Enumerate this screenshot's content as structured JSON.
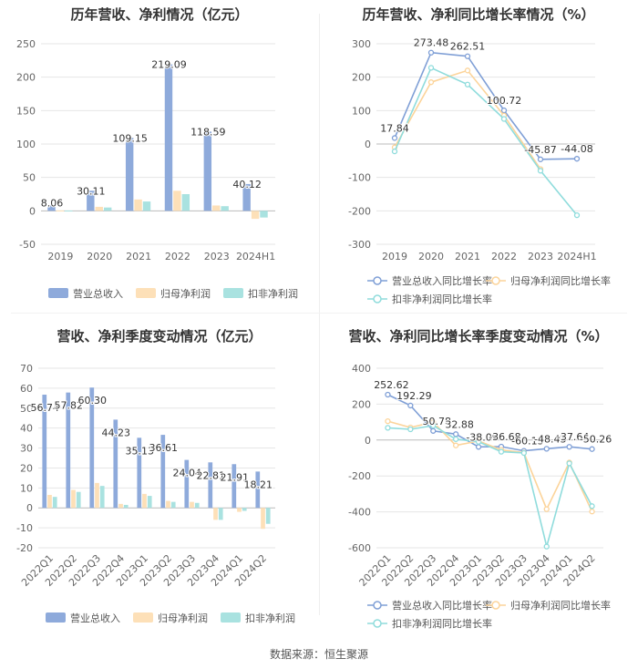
{
  "footer": "数据来源：恒生聚源",
  "chart_data": [
    {
      "id": "annual_values",
      "type": "bar",
      "title": "历年营收、净利情况（亿元）",
      "categories": [
        "2019",
        "2020",
        "2021",
        "2022",
        "2023",
        "2024H1"
      ],
      "ylim": [
        -50,
        250
      ],
      "yticks": [
        -50,
        0,
        50,
        100,
        150,
        200,
        250
      ],
      "series": [
        {
          "name": "营业总收入",
          "color": "#8eaadb",
          "values": [
            8.06,
            30.11,
            109.15,
            219.09,
            118.59,
            40.12
          ],
          "labels": [
            "8.06",
            "30.11",
            "109.15",
            "219.09",
            "118.59",
            "40.12"
          ]
        },
        {
          "name": "归母净利润",
          "color": "#fde0b8",
          "values": [
            0.5,
            6,
            17,
            30,
            8,
            -12
          ]
        },
        {
          "name": "扣非净利润",
          "color": "#a9e2e0",
          "values": [
            0.4,
            5,
            14,
            25,
            7,
            -10
          ]
        }
      ],
      "legend_position": "bottom"
    },
    {
      "id": "annual_growth",
      "type": "line",
      "title": "历年营收、净利同比增长率情况（%）",
      "categories": [
        "2019",
        "2020",
        "2021",
        "2022",
        "2023",
        "2024H1"
      ],
      "ylim": [
        -300,
        300
      ],
      "yticks": [
        -300,
        -200,
        -100,
        0,
        100,
        200,
        300
      ],
      "series": [
        {
          "name": "营业总收入同比增长率",
          "color": "#7f9fd6",
          "values": [
            17.84,
            273.48,
            262.51,
            100.72,
            -45.87,
            -44.08
          ],
          "labels": [
            "17.84",
            "273.48",
            "262.51",
            "100.72",
            "-45.87",
            "-44.08"
          ]
        },
        {
          "name": "归母净利润同比增长率",
          "color": "#fcd49a",
          "values": [
            -10,
            185,
            220,
            85,
            -75,
            null
          ]
        },
        {
          "name": "扣非净利润同比增长率",
          "color": "#8fdcdc",
          "values": [
            -22,
            228,
            178,
            75,
            -80,
            -213
          ]
        }
      ],
      "legend_position": "bottom"
    },
    {
      "id": "quarterly_values",
      "type": "bar",
      "title": "营收、净利季度变动情况（亿元）",
      "categories": [
        "2022Q1",
        "2022Q2",
        "2022Q3",
        "2022Q4",
        "2023Q1",
        "2023Q2",
        "2023Q3",
        "2023Q4",
        "2024Q1",
        "2024Q2"
      ],
      "ylim": [
        -20,
        70
      ],
      "yticks": [
        -20,
        -10,
        0,
        10,
        20,
        30,
        40,
        50,
        60,
        70
      ],
      "series": [
        {
          "name": "营业总收入",
          "color": "#8eaadb",
          "values": [
            56.74,
            57.82,
            60.3,
            44.23,
            35.13,
            36.61,
            24.04,
            22.81,
            21.91,
            18.21
          ],
          "labels": [
            "56.74",
            "57.82",
            "60.30",
            "44.23",
            "35.13",
            "36.61",
            "24.04",
            "22.81",
            "21.91",
            "18.21"
          ]
        },
        {
          "name": "归母净利润",
          "color": "#fde0b8",
          "values": [
            6.5,
            9,
            12.5,
            2,
            7,
            3.5,
            3,
            -6,
            -2,
            -10.5
          ]
        },
        {
          "name": "扣非净利润",
          "color": "#a9e2e0",
          "values": [
            5.5,
            8,
            11,
            1.5,
            6,
            3,
            2.5,
            -6,
            -1.5,
            -8
          ]
        }
      ],
      "legend_position": "bottom"
    },
    {
      "id": "quarterly_growth",
      "type": "line",
      "title": "营收、净利同比增长率季度变动情况（%）",
      "categories": [
        "2022Q1",
        "2022Q2",
        "2022Q3",
        "2022Q4",
        "2023Q1",
        "2023Q2",
        "2023Q3",
        "2023Q4",
        "2024Q1",
        "2024Q2"
      ],
      "ylim": [
        -600,
        400
      ],
      "yticks": [
        -600,
        -400,
        -200,
        0,
        200,
        400
      ],
      "series": [
        {
          "name": "营业总收入同比增长率",
          "color": "#7f9fd6",
          "values": [
            252.62,
            192.29,
            50.78,
            32.88,
            -38.09,
            -36.68,
            -60.13,
            -48.43,
            -37.64,
            -50.26
          ],
          "labels": [
            "252.62",
            "192.29",
            "50.78",
            "32.88",
            "-38.09",
            "-36.68",
            "-60.13",
            "-48.43",
            "-37.64",
            "-50.26"
          ]
        },
        {
          "name": "归母净利润同比增长率",
          "color": "#fcd49a",
          "values": [
            105,
            70,
            100,
            -30,
            -5,
            -55,
            -70,
            -385,
            -125,
            -398
          ]
        },
        {
          "name": "扣非净利润同比增长率",
          "color": "#8fdcdc",
          "values": [
            68,
            60,
            80,
            5,
            -10,
            -65,
            -72,
            -593,
            -130,
            -368
          ]
        }
      ],
      "legend_position": "bottom"
    }
  ]
}
